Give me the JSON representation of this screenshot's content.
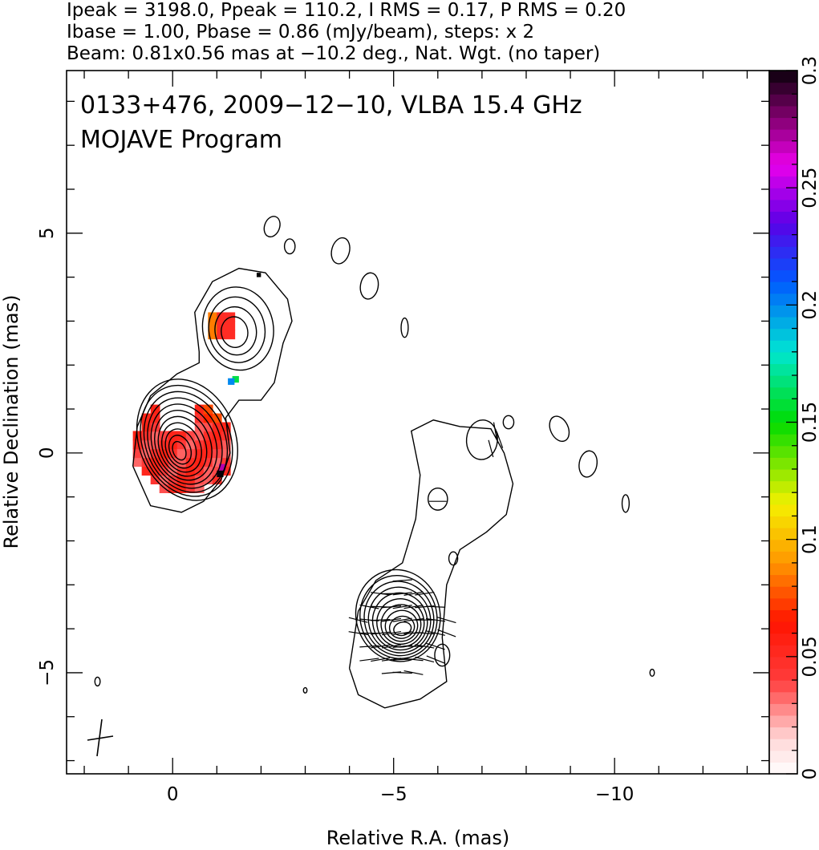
{
  "header": {
    "line1": "Ipeak = 3198.0, Ppeak = 110.2, I RMS = 0.17, P RMS = 0.20",
    "line2": "Ibase = 1.00, Pbase = 0.86 (mJy/beam), steps: x 2",
    "line3": "Beam: 0.81x0.56 mas at −10.2 deg., Nat. Wgt. (no taper)"
  },
  "chart_data": {
    "type": "heatmap",
    "title": "0133+476, 2009−12−10, VLBA 15.4 GHz",
    "subtitle": "MOJAVE Program",
    "xlabel": "Relative R.A. (mas)",
    "ylabel": "Relative Declination (mas)",
    "xlim": [
      2.4,
      -13.5
    ],
    "ylim": [
      -7.3,
      8.7
    ],
    "x_ticks": [
      {
        "value": 0,
        "label": "0"
      },
      {
        "value": -5,
        "label": "−5"
      },
      {
        "value": -10,
        "label": "−10"
      }
    ],
    "y_ticks": [
      {
        "value": 5,
        "label": "5"
      },
      {
        "value": 0,
        "label": "0"
      },
      {
        "value": -5,
        "label": "−5"
      }
    ],
    "colorbar": {
      "min": 0,
      "max": 0.3,
      "ticks": [
        {
          "value": 0,
          "label": "0"
        },
        {
          "value": 0.05,
          "label": "0.05"
        },
        {
          "value": 0.1,
          "label": "0.1"
        },
        {
          "value": 0.15,
          "label": "0.15"
        },
        {
          "value": 0.2,
          "label": "0.2"
        },
        {
          "value": 0.25,
          "label": "0.25"
        },
        {
          "value": 0.3,
          "label": "0.3"
        }
      ]
    },
    "core": {
      "x": -0.15,
      "y": 0.05
    },
    "knot_north": {
      "x": -1.4,
      "y": 2.75
    },
    "jet_component": {
      "x": -5.2,
      "y": -4.0
    },
    "beam": {
      "major_mas": 0.81,
      "minor_mas": 0.56,
      "pa_deg": -10.2
    },
    "colors": {
      "core_fraction": "#ff4d4d",
      "edge_fraction": "#ff9a00"
    }
  }
}
